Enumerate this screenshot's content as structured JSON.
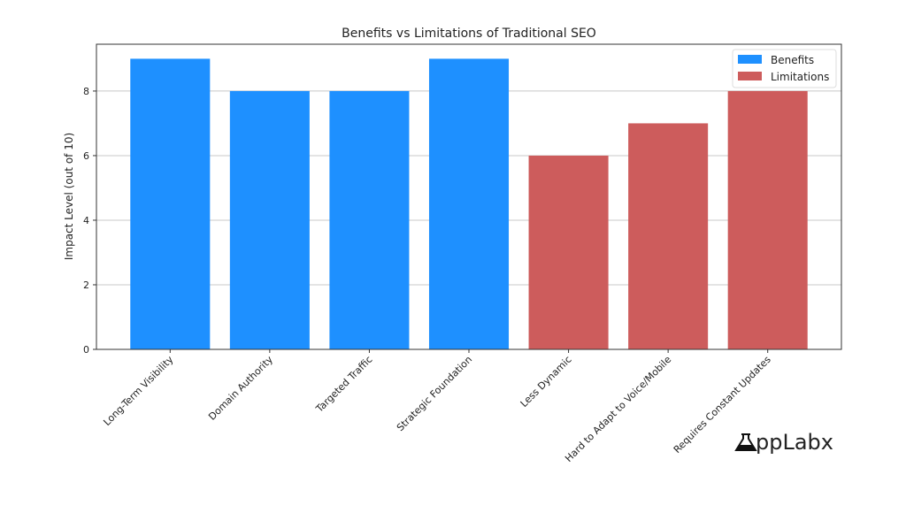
{
  "chart_data": {
    "type": "bar",
    "title": "Benefits vs Limitations of Traditional SEO",
    "xlabel": "",
    "ylabel": "Impact Level (out of 10)",
    "categories": [
      "Long-Term Visibility",
      "Domain Authority",
      "Targeted Traffic",
      "Strategic Foundation",
      "Less Dynamic",
      "Hard to Adapt to Voice/Mobile",
      "Requires Constant Updates"
    ],
    "values": [
      9,
      8,
      8,
      9,
      6,
      7,
      8
    ],
    "groups": [
      "Benefits",
      "Benefits",
      "Benefits",
      "Benefits",
      "Limitations",
      "Limitations",
      "Limitations"
    ],
    "series": [
      {
        "name": "Benefits",
        "color": "#1e90ff"
      },
      {
        "name": "Limitations",
        "color": "#cd5c5c"
      }
    ],
    "ylim": [
      0,
      9.45
    ],
    "yticks": [
      0,
      2,
      4,
      6,
      8
    ],
    "grid": "horizontal",
    "legend": "top-right"
  },
  "logo": {
    "text": "AppLabx"
  }
}
